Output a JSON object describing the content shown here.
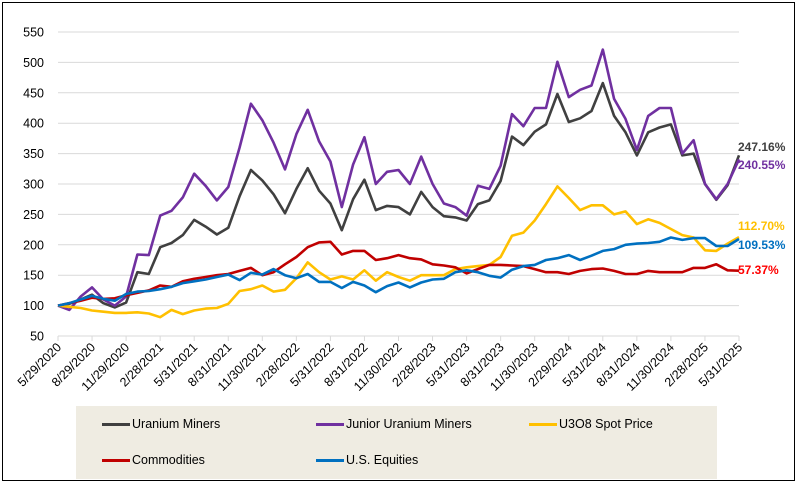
{
  "chart_data": {
    "type": "line",
    "title": "",
    "xlabel": "",
    "ylabel": "",
    "ylim": [
      50,
      550
    ],
    "yticks": [
      50,
      100,
      150,
      200,
      250,
      300,
      350,
      400,
      450,
      500,
      550
    ],
    "grid": "horizontal",
    "legend_position": "bottom",
    "x_start": "5/29/2020",
    "x_frequency": "monthly",
    "xtick_labels": [
      "5/29/2020",
      "8/29/2020",
      "11/29/2020",
      "2/28/2021",
      "5/31/2021",
      "8/31/2021",
      "11/30/2021",
      "2/28/2022",
      "5/31/2022",
      "8/31/2022",
      "11/30/2022",
      "2/28/2023",
      "5/31/2023",
      "8/31/2023",
      "11/30/2023",
      "2/29/2024",
      "5/31/2024",
      "8/31/2024",
      "11/30/2024",
      "2/28/2025",
      "5/31/2025"
    ],
    "series": [
      {
        "name": "Uranium Miners",
        "color": "#404040",
        "end_label": "247.16%",
        "label_color": "#404040",
        "values": [
          100,
          103,
          110,
          118,
          104,
          97,
          105,
          155,
          152,
          196,
          203,
          216,
          241,
          230,
          217,
          228,
          280,
          323,
          306,
          283,
          252,
          292,
          326,
          289,
          268,
          224,
          275,
          307,
          257,
          264,
          262,
          250,
          287,
          262,
          247,
          245,
          240,
          267,
          273,
          305,
          378,
          364,
          386,
          398,
          448,
          402,
          408,
          420,
          466,
          412,
          385,
          347,
          385,
          393,
          398,
          347,
          350,
          300,
          274,
          298,
          347.16
        ]
      },
      {
        "name": "Junior Uranium Miners",
        "color": "#7030a0",
        "end_label": "240.55%",
        "label_color": "#7030a0",
        "values": [
          100,
          93,
          115,
          130,
          110,
          100,
          115,
          184,
          183,
          248,
          256,
          278,
          317,
          297,
          273,
          295,
          360,
          432,
          405,
          368,
          324,
          382,
          422,
          370,
          337,
          262,
          332,
          377,
          300,
          320,
          323,
          300,
          345,
          300,
          268,
          262,
          248,
          297,
          292,
          330,
          415,
          395,
          425,
          425,
          501,
          443,
          455,
          462,
          521,
          440,
          407,
          356,
          412,
          425,
          425,
          350,
          372,
          300,
          275,
          300,
          340.55
        ]
      },
      {
        "name": "U3O8 Spot Price",
        "color": "#ffc000",
        "end_label": "112.70%",
        "label_color": "#ffc000",
        "values": [
          100,
          98,
          96,
          92,
          90,
          88,
          88,
          89,
          87,
          81,
          93,
          86,
          92,
          95,
          96,
          103,
          124,
          127,
          133,
          123,
          126,
          145,
          171,
          155,
          143,
          148,
          143,
          158,
          141,
          155,
          147,
          141,
          150,
          150,
          150,
          160,
          163,
          165,
          167,
          180,
          215,
          220,
          240,
          267,
          296,
          277,
          257,
          265,
          265,
          250,
          255,
          234,
          242,
          236,
          226,
          216,
          212,
          191,
          190,
          202,
          212.7
        ]
      },
      {
        "name": "Commodities",
        "color": "#c00000",
        "end_label": "57.37%",
        "label_color": "#ff0000",
        "values": [
          100,
          104,
          108,
          113,
          111,
          112,
          117,
          121,
          125,
          133,
          131,
          140,
          144,
          147,
          150,
          152,
          157,
          162,
          150,
          155,
          168,
          180,
          196,
          204,
          205,
          184,
          190,
          190,
          175,
          178,
          183,
          178,
          176,
          168,
          166,
          163,
          153,
          160,
          167,
          167,
          166,
          165,
          160,
          155,
          155,
          152,
          157,
          160,
          161,
          157,
          152,
          152,
          157,
          155,
          155,
          155,
          162,
          162,
          168,
          158,
          157.37
        ]
      },
      {
        "name": "U.S. Equities",
        "color": "#0070c0",
        "end_label": "109.53%",
        "label_color": "#0070c0",
        "values": [
          100,
          104,
          110,
          116,
          111,
          108,
          119,
          123,
          124,
          127,
          131,
          137,
          140,
          143,
          147,
          151,
          142,
          154,
          151,
          160,
          150,
          145,
          152,
          139,
          139,
          129,
          139,
          133,
          122,
          132,
          138,
          130,
          138,
          143,
          144,
          155,
          158,
          155,
          149,
          146,
          159,
          165,
          167,
          175,
          178,
          183,
          175,
          182,
          190,
          193,
          200,
          202,
          203,
          205,
          212,
          208,
          211,
          211,
          198,
          198,
          209.53
        ]
      }
    ]
  }
}
